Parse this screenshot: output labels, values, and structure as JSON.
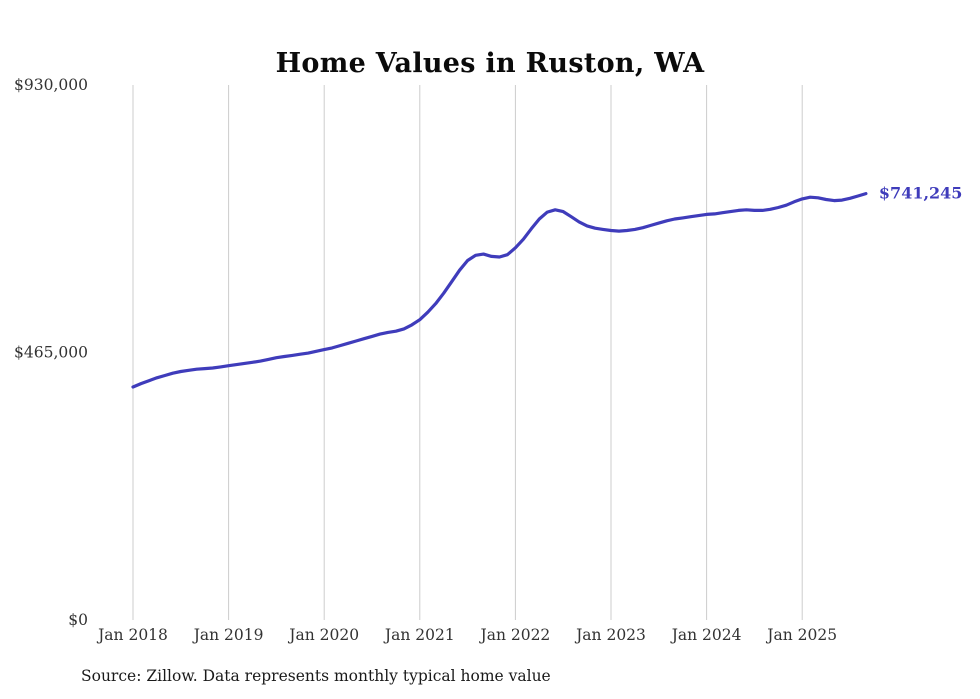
{
  "title": "Home Values in Ruston, WA",
  "source_note": "Source: Zillow. Data represents monthly typical home value",
  "end_label": "$741,245",
  "chart_data": {
    "type": "line",
    "title": "Home Values in Ruston, WA",
    "series_name": "Monthly typical home value",
    "line_color": "#3f3cbb",
    "grid_color": "#cccccc",
    "text_color": "#333333",
    "x_start": "2018-01",
    "x_end": "2025-09",
    "x_tick_labels": [
      "Jan 2018",
      "Jan 2019",
      "Jan 2020",
      "Jan 2021",
      "Jan 2022",
      "Jan 2023",
      "Jan 2024",
      "Jan 2025"
    ],
    "y_ticks": [
      0,
      465000,
      930000
    ],
    "y_tick_labels": [
      "$0",
      "$465,000",
      "$930,000"
    ],
    "ylim": [
      0,
      930000
    ],
    "grid": "vertical-only",
    "legend": "none",
    "end_value": 741245,
    "values": [
      405000,
      411000,
      416000,
      421000,
      425000,
      429000,
      432000,
      434000,
      436000,
      437000,
      438000,
      440000,
      442000,
      444000,
      446000,
      448000,
      450000,
      453000,
      456000,
      458000,
      460000,
      462000,
      464000,
      467000,
      470000,
      473000,
      477000,
      481000,
      485000,
      489000,
      493000,
      497000,
      500000,
      502000,
      506000,
      513000,
      522000,
      535000,
      550000,
      568000,
      588000,
      608000,
      625000,
      634000,
      636000,
      632000,
      631000,
      635000,
      647000,
      662000,
      680000,
      697000,
      709000,
      713000,
      710000,
      701000,
      692000,
      685000,
      681000,
      679000,
      677000,
      676000,
      677000,
      679000,
      682000,
      686000,
      690000,
      694000,
      697000,
      699000,
      701000,
      703000,
      705000,
      706000,
      708000,
      710000,
      712000,
      713000,
      712000,
      712000,
      714000,
      717000,
      721000,
      727000,
      732000,
      735000,
      734000,
      731000,
      729000,
      730000,
      733000,
      737000,
      741245
    ]
  }
}
